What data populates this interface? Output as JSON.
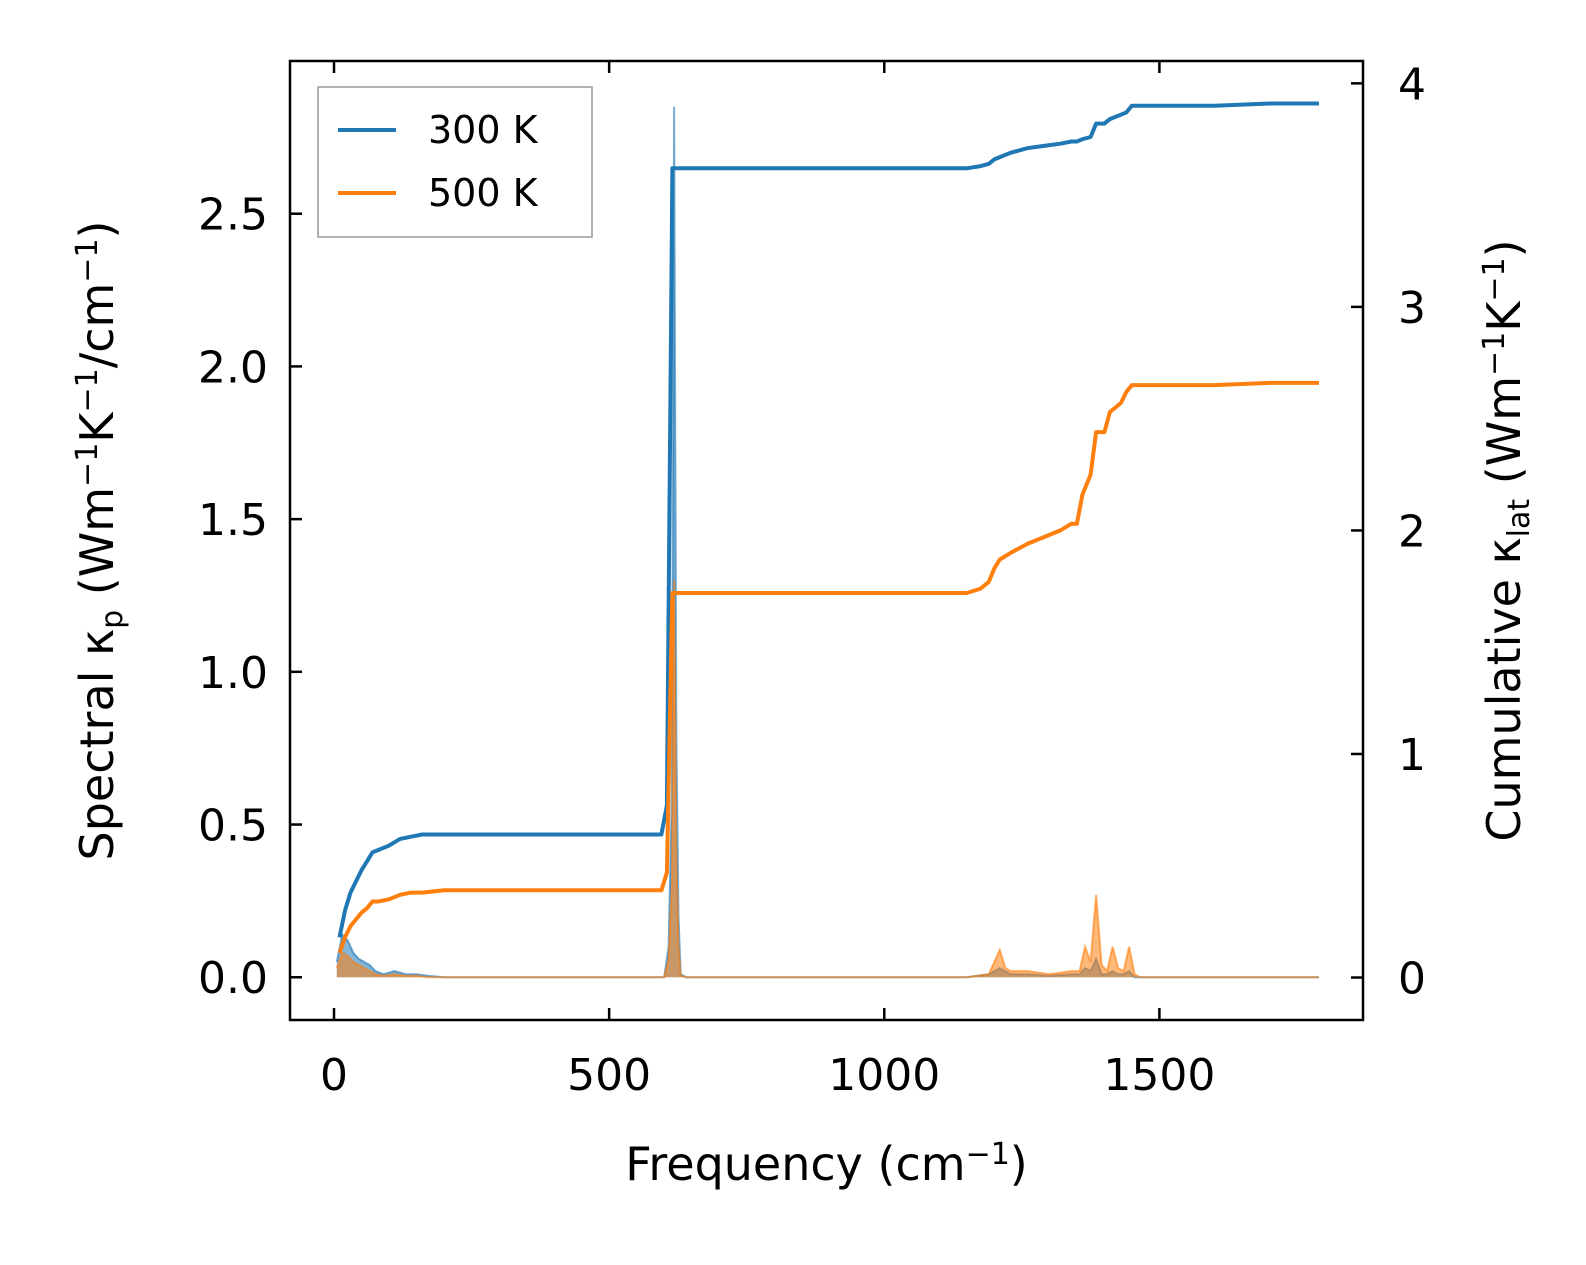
{
  "chart_data": {
    "type": "line",
    "xlabel": "Frequency (cm⁻¹)",
    "xlabel_parts": [
      "Frequency (cm",
      "−1",
      ")"
    ],
    "ylabel_left": "Spectral κₚ (Wm⁻¹K⁻¹/cm⁻¹)",
    "ylabel_left_parts": [
      "Spectral κ",
      "p",
      " (Wm",
      "−1",
      "K",
      "−1",
      "/cm",
      "−1",
      ")"
    ],
    "ylabel_right": "Cumulative κₗₐₜ (Wm⁻¹K⁻¹)",
    "ylabel_right_parts": [
      "Cumulative κ",
      "lat",
      " (Wm",
      "−1",
      "K",
      "−1",
      ")"
    ],
    "xlim": [
      -80,
      1870
    ],
    "ylim_left": [
      -0.14,
      3.0
    ],
    "ylim_right": [
      -0.19,
      4.1
    ],
    "x_ticks": [
      0,
      500,
      1000,
      1500
    ],
    "x_tick_labels": [
      "0",
      "500",
      "1000",
      "1500"
    ],
    "y_left_ticks": [
      0.0,
      0.5,
      1.0,
      1.5,
      2.0,
      2.5
    ],
    "y_left_tick_labels": [
      "0.0",
      "0.5",
      "1.0",
      "1.5",
      "2.0",
      "2.5"
    ],
    "y_right_ticks": [
      0,
      1,
      2,
      3,
      4
    ],
    "y_right_tick_labels": [
      "0",
      "1",
      "2",
      "3",
      "4"
    ],
    "grid": false,
    "legend_position": "top-left",
    "series": [
      {
        "name": "300 K",
        "color": "#1f77b4",
        "axis": "right",
        "kind": "cumulative",
        "x": [
          10,
          20,
          30,
          40,
          50,
          60,
          70,
          80,
          100,
          120,
          140,
          160,
          200,
          300,
          400,
          500,
          595,
          605,
          615,
          625,
          700,
          800,
          900,
          1000,
          1100,
          1150,
          1175,
          1190,
          1200,
          1210,
          1230,
          1260,
          1290,
          1320,
          1340,
          1350,
          1360,
          1375,
          1385,
          1400,
          1410,
          1420,
          1430,
          1440,
          1450,
          1500,
          1600,
          1700,
          1790
        ],
        "y": [
          0.18,
          0.3,
          0.38,
          0.43,
          0.48,
          0.52,
          0.56,
          0.57,
          0.59,
          0.62,
          0.63,
          0.64,
          0.64,
          0.64,
          0.64,
          0.64,
          0.64,
          0.77,
          3.62,
          3.62,
          3.62,
          3.62,
          3.62,
          3.62,
          3.62,
          3.62,
          3.63,
          3.64,
          3.66,
          3.67,
          3.69,
          3.71,
          3.72,
          3.73,
          3.74,
          3.74,
          3.75,
          3.76,
          3.82,
          3.82,
          3.84,
          3.85,
          3.86,
          3.87,
          3.9,
          3.9,
          3.9,
          3.91,
          3.91
        ]
      },
      {
        "name": "500 K",
        "color": "#ff7f0e",
        "axis": "right",
        "kind": "cumulative",
        "x": [
          10,
          20,
          30,
          40,
          50,
          60,
          70,
          80,
          100,
          120,
          140,
          160,
          200,
          300,
          400,
          500,
          595,
          605,
          615,
          625,
          700,
          800,
          900,
          1000,
          1100,
          1150,
          1175,
          1190,
          1200,
          1210,
          1230,
          1260,
          1290,
          1320,
          1340,
          1350,
          1360,
          1375,
          1385,
          1400,
          1410,
          1420,
          1430,
          1440,
          1450,
          1500,
          1600,
          1700,
          1790
        ],
        "y": [
          0.11,
          0.18,
          0.23,
          0.26,
          0.29,
          0.31,
          0.34,
          0.34,
          0.35,
          0.37,
          0.38,
          0.38,
          0.39,
          0.39,
          0.39,
          0.39,
          0.39,
          0.47,
          1.72,
          1.72,
          1.72,
          1.72,
          1.72,
          1.72,
          1.72,
          1.72,
          1.74,
          1.77,
          1.83,
          1.87,
          1.9,
          1.94,
          1.97,
          2.0,
          2.03,
          2.03,
          2.16,
          2.25,
          2.44,
          2.44,
          2.53,
          2.55,
          2.57,
          2.62,
          2.65,
          2.65,
          2.65,
          2.66,
          2.66
        ]
      },
      {
        "name": "300 K",
        "color": "#1f77b4",
        "axis": "left",
        "kind": "spectral",
        "x": [
          5,
          15,
          25,
          35,
          45,
          55,
          65,
          75,
          90,
          110,
          130,
          150,
          170,
          200,
          600,
          608,
          614,
          618,
          622,
          626,
          630,
          640,
          1150,
          1190,
          1200,
          1210,
          1230,
          1260,
          1300,
          1340,
          1355,
          1365,
          1375,
          1385,
          1395,
          1405,
          1415,
          1425,
          1435,
          1445,
          1455,
          1465,
          1790
        ],
        "y": [
          0.05,
          0.14,
          0.12,
          0.08,
          0.06,
          0.05,
          0.04,
          0.02,
          0.01,
          0.02,
          0.01,
          0.01,
          0.005,
          0.0,
          0.0,
          0.1,
          0.6,
          2.85,
          0.8,
          0.2,
          0.01,
          0.0,
          0.0,
          0.01,
          0.02,
          0.03,
          0.01,
          0.01,
          0.005,
          0.01,
          0.01,
          0.03,
          0.02,
          0.06,
          0.01,
          0.01,
          0.02,
          0.01,
          0.01,
          0.02,
          0.0,
          0.0,
          0.0
        ]
      },
      {
        "name": "500 K",
        "color": "#ff7f0e",
        "axis": "left",
        "kind": "spectral",
        "x": [
          5,
          15,
          25,
          35,
          45,
          55,
          65,
          75,
          90,
          110,
          130,
          150,
          170,
          200,
          600,
          608,
          614,
          618,
          622,
          626,
          630,
          640,
          1150,
          1190,
          1200,
          1210,
          1220,
          1230,
          1260,
          1300,
          1340,
          1355,
          1365,
          1375,
          1385,
          1395,
          1405,
          1415,
          1425,
          1435,
          1445,
          1455,
          1465,
          1790
        ],
        "y": [
          0.03,
          0.08,
          0.07,
          0.05,
          0.04,
          0.03,
          0.02,
          0.01,
          0.005,
          0.01,
          0.005,
          0.005,
          0.0,
          0.0,
          0.0,
          0.06,
          0.3,
          1.3,
          0.4,
          0.1,
          0.005,
          0.0,
          0.0,
          0.01,
          0.05,
          0.09,
          0.03,
          0.02,
          0.02,
          0.01,
          0.02,
          0.02,
          0.1,
          0.05,
          0.27,
          0.04,
          0.02,
          0.1,
          0.03,
          0.02,
          0.1,
          0.01,
          0.0,
          0.0
        ]
      }
    ],
    "legend": [
      {
        "label": "300 K",
        "color": "#1f77b4"
      },
      {
        "label": "500 K",
        "color": "#ff7f0e"
      }
    ]
  }
}
